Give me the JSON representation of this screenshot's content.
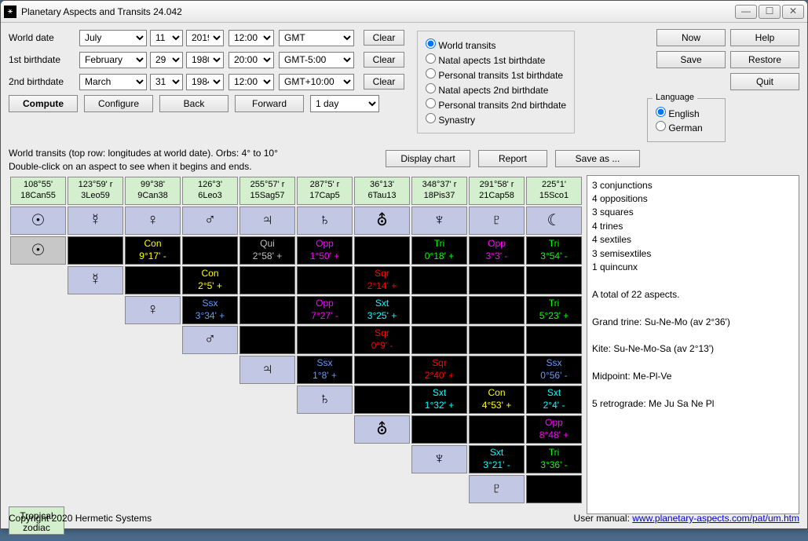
{
  "window": {
    "title": "Planetary Aspects and Transits 24.042"
  },
  "labels": {
    "world": "World date",
    "bd1": "1st birthdate",
    "bd2": "2nd birthdate",
    "clear": "Clear"
  },
  "dates": {
    "world": {
      "month": "July",
      "day": "11",
      "year": "2019",
      "time": "12:00",
      "tz": "GMT"
    },
    "bd1": {
      "month": "February",
      "day": "29",
      "year": "1980",
      "time": "20:00",
      "tz": "GMT-5:00"
    },
    "bd2": {
      "month": "March",
      "day": "31",
      "year": "1984",
      "time": "12:00",
      "tz": "GMT+10:00"
    }
  },
  "modes": {
    "world": "World transits",
    "n1": "Natal apects 1st birthdate",
    "p1": "Personal transits 1st birthdate",
    "n2": "Natal apects 2nd birthdate",
    "p2": "Personal transits 2nd birthdate",
    "syn": "Synastry"
  },
  "buttons": {
    "now": "Now",
    "help": "Help",
    "save": "Save",
    "restore": "Restore",
    "quit": "Quit",
    "compute": "Compute",
    "configure": "Configure",
    "back": "Back",
    "forward": "Forward",
    "step": "1 day",
    "display": "Display chart",
    "report": "Report",
    "saveas": "Save as ..."
  },
  "lang": {
    "legend": "Language",
    "en": "English",
    "de": "German"
  },
  "info": {
    "l1": "World transits (top row: longitudes at world date).  Orbs: 4° to 10°",
    "l2": "Double-click on an aspect to see when it begins and ends."
  },
  "headers": [
    {
      "a": "108°55'",
      "b": "18Can55"
    },
    {
      "a": "123°59' r",
      "b": "3Leo59"
    },
    {
      "a": "99°38'",
      "b": "9Can38"
    },
    {
      "a": "126°3'",
      "b": "6Leo3"
    },
    {
      "a": "255°57' r",
      "b": "15Sag57"
    },
    {
      "a": "287°5' r",
      "b": "17Cap5"
    },
    {
      "a": "36°13'",
      "b": "6Tau13"
    },
    {
      "a": "348°37' r",
      "b": "18Pis37"
    },
    {
      "a": "291°58' r",
      "b": "21Cap58"
    },
    {
      "a": "225°1'",
      "b": "15Sco1"
    }
  ],
  "planets": [
    "☉",
    "☿",
    "♀",
    "♂",
    "♃",
    "♄",
    "⛢",
    "♆",
    "♇",
    "☾"
  ],
  "aspects": {
    "r0": {
      "c2": {
        "t": "Con",
        "v": "9°17' -",
        "cls": "c-yel"
      },
      "c4": {
        "t": "Qui",
        "v": "2°58' +",
        "cls": "c-gry"
      },
      "c5": {
        "t": "Opp",
        "v": "1°50' +",
        "cls": "c-mag"
      },
      "c7": {
        "t": "Tri",
        "v": "0°18' +",
        "cls": "c-grn"
      },
      "c8": {
        "t": "Opp",
        "v": "3°3' -",
        "cls": "c-mag"
      },
      "c9": {
        "t": "Tri",
        "v": "3°54' -",
        "cls": "c-grn"
      }
    },
    "r1": {
      "c3": {
        "t": "Con",
        "v": "2°5' +",
        "cls": "c-yel"
      },
      "c6": {
        "t": "Sqr",
        "v": "2°14' +",
        "cls": "c-red"
      }
    },
    "r2": {
      "c3": {
        "t": "Ssx",
        "v": "3°34' +",
        "cls": "c-blu"
      },
      "c5": {
        "t": "Opp",
        "v": "7°27' -",
        "cls": "c-mag"
      },
      "c6": {
        "t": "Sxt",
        "v": "3°25' +",
        "cls": "c-cyn"
      },
      "c9": {
        "t": "Tri",
        "v": "5°23' +",
        "cls": "c-grn"
      }
    },
    "r3": {
      "c6": {
        "t": "Sqr",
        "v": "0°9' -",
        "cls": "c-red"
      }
    },
    "r4": {
      "c5": {
        "t": "Ssx",
        "v": "1°8' +",
        "cls": "c-blu"
      },
      "c7": {
        "t": "Sqr",
        "v": "2°40' +",
        "cls": "c-red"
      },
      "c9": {
        "t": "Ssx",
        "v": "0°56' -",
        "cls": "c-blu"
      }
    },
    "r5": {
      "c7": {
        "t": "Sxt",
        "v": "1°32' +",
        "cls": "c-cyn"
      },
      "c8": {
        "t": "Con",
        "v": "4°53' +",
        "cls": "c-yel"
      },
      "c9": {
        "t": "Sxt",
        "v": "2°4' -",
        "cls": "c-cyn"
      }
    },
    "r6": {
      "c9": {
        "t": "Opp",
        "v": "8°48' +",
        "cls": "c-mag"
      }
    },
    "r7": {
      "c8": {
        "t": "Sxt",
        "v": "3°21' -",
        "cls": "c-cyn"
      },
      "c9": {
        "t": "Tri",
        "v": "3°36' -",
        "cls": "c-grn"
      }
    }
  },
  "zodiac": {
    "l1": "Tropical",
    "l2": "zodiac"
  },
  "summary": {
    "lines": [
      "3 conjunctions",
      "4 oppositions",
      "3 squares",
      "4 trines",
      "4 sextiles",
      "3 semisextiles",
      "1 quincunx",
      "",
      "A total of 22 aspects.",
      "",
      "Grand trine: Su-Ne-Mo (av 2°36')",
      "",
      "Kite: Su-Ne-Mo-Sa (av 2°13')",
      "",
      "Midpoint: Me-Pl-Ve",
      "",
      "5 retrograde: Me Ju Sa Ne Pl"
    ]
  },
  "footer": {
    "copy": "Copyright 2020 Hermetic Systems",
    "manual_label": "User manual: ",
    "manual_link": "www.planetary-aspects.com/pat/um.htm"
  }
}
